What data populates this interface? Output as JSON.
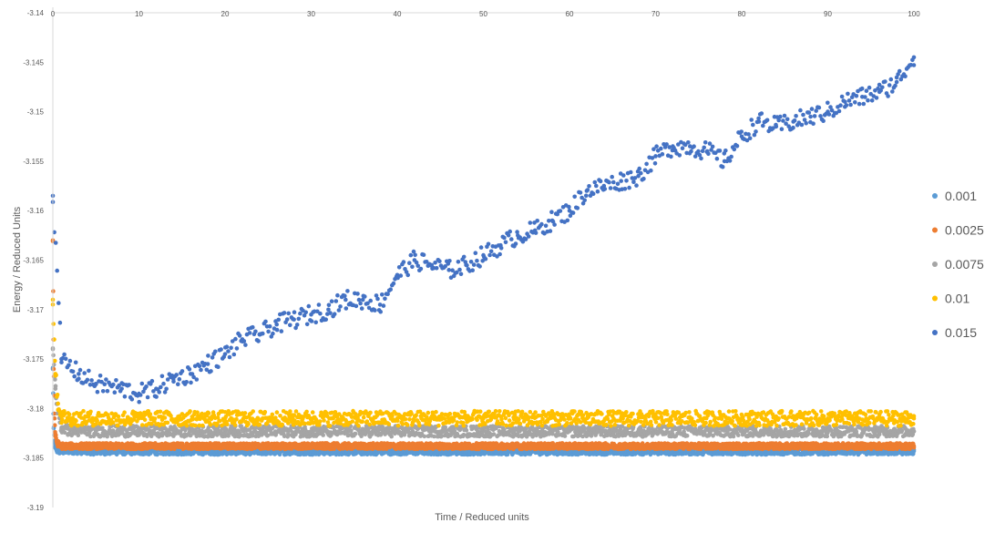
{
  "chart_data": {
    "type": "scatter",
    "title": "",
    "xlabel": "Time / Reduced units",
    "ylabel": "Energy / Reduced Units",
    "xlim": [
      0,
      100
    ],
    "ylim": [
      -3.19,
      -3.14
    ],
    "x_ticks": [
      "0",
      "10",
      "20",
      "30",
      "40",
      "50",
      "60",
      "70",
      "80",
      "90",
      "100"
    ],
    "y_ticks": [
      "-3.14",
      "-3.145",
      "-3.15",
      "-3.155",
      "-3.16",
      "-3.165",
      "-3.17",
      "-3.175",
      "-3.18",
      "-3.185",
      "-3.19"
    ],
    "x_axis_position": "top",
    "grid": false,
    "legend_position": "right",
    "series": [
      {
        "name": "0.001",
        "color": "#5B9BD5",
        "x": [
          0,
          0.1,
          0.2,
          0.3,
          0.5,
          1,
          2,
          5,
          10,
          20,
          30,
          40,
          50,
          60,
          70,
          80,
          90,
          100
        ],
        "y": [
          -3.176,
          -3.182,
          -3.1835,
          -3.184,
          -3.1842,
          -3.1843,
          -3.1842,
          -3.1843,
          -3.1843,
          -3.1843,
          -3.1843,
          -3.1843,
          -3.1843,
          -3.1843,
          -3.1843,
          -3.1843,
          -3.1843,
          -3.1843
        ]
      },
      {
        "name": "0.0025",
        "color": "#ED7D31",
        "x": [
          0,
          0.1,
          0.2,
          0.3,
          0.5,
          1,
          2,
          5,
          10,
          20,
          30,
          40,
          50,
          60,
          70,
          80,
          90,
          100
        ],
        "y": [
          -3.163,
          -3.176,
          -3.181,
          -3.1828,
          -3.1835,
          -3.1838,
          -3.1838,
          -3.1838,
          -3.1838,
          -3.1838,
          -3.1838,
          -3.1838,
          -3.1838,
          -3.1838,
          -3.1838,
          -3.1838,
          -3.1838,
          -3.1838
        ]
      },
      {
        "name": "0.0075",
        "color": "#A5A5A5",
        "x": [
          0,
          0.3,
          0.6,
          1,
          2,
          5,
          10,
          20,
          30,
          40,
          50,
          60,
          70,
          80,
          90,
          100
        ],
        "y": [
          -3.174,
          -3.178,
          -3.1805,
          -3.182,
          -3.1822,
          -3.1823,
          -3.1823,
          -3.1823,
          -3.1823,
          -3.1823,
          -3.1823,
          -3.1823,
          -3.1823,
          -3.1823,
          -3.1823,
          -3.1823
        ]
      },
      {
        "name": "0.01",
        "color": "#FFC000",
        "x": [
          0,
          0.3,
          0.6,
          1,
          2,
          5,
          10,
          20,
          30,
          40,
          50,
          60,
          70,
          80,
          90,
          100
        ],
        "y": [
          -3.169,
          -3.1765,
          -3.1795,
          -3.1808,
          -3.181,
          -3.181,
          -3.181,
          -3.181,
          -3.181,
          -3.181,
          -3.181,
          -3.181,
          -3.181,
          -3.181,
          -3.181,
          -3.181
        ]
      },
      {
        "name": "0.015",
        "color": "#4472C4",
        "x": [
          0,
          1,
          3,
          5,
          8,
          10,
          12,
          14,
          16,
          18,
          20,
          22,
          24,
          26,
          28,
          30,
          32,
          34,
          36,
          38,
          40,
          42,
          44,
          46,
          48,
          50,
          52,
          54,
          56,
          58,
          60,
          62,
          64,
          66,
          68,
          70,
          72,
          74,
          76,
          78,
          80,
          82,
          84,
          86,
          88,
          90,
          92,
          94,
          96,
          98,
          100
        ],
        "y": [
          -3.1585,
          -3.175,
          -3.1765,
          -3.1775,
          -3.178,
          -3.1785,
          -3.178,
          -3.177,
          -3.1765,
          -3.1755,
          -3.1745,
          -3.173,
          -3.1725,
          -3.1715,
          -3.171,
          -3.1705,
          -3.17,
          -3.169,
          -3.169,
          -3.1695,
          -3.1665,
          -3.165,
          -3.1655,
          -3.166,
          -3.1655,
          -3.1645,
          -3.1635,
          -3.1625,
          -3.162,
          -3.161,
          -3.16,
          -3.158,
          -3.1575,
          -3.157,
          -3.1565,
          -3.1545,
          -3.1535,
          -3.1535,
          -3.154,
          -3.155,
          -3.1525,
          -3.151,
          -3.1515,
          -3.151,
          -3.1505,
          -3.15,
          -3.149,
          -3.1485,
          -3.148,
          -3.147,
          -3.1445
        ]
      }
    ]
  }
}
